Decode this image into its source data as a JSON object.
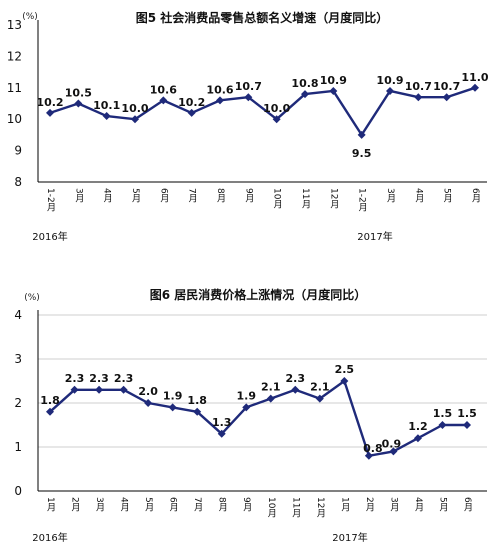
{
  "chart_data": [
    {
      "type": "line",
      "title": "图5 社会消费品零售总额名义增速（月度同比）",
      "unit": "(%)",
      "ylim": [
        8,
        13
      ],
      "yticks": [
        8,
        9,
        10,
        11,
        12,
        13
      ],
      "grid": false,
      "categories": [
        "1-2月",
        "3月",
        "4月",
        "5月",
        "6月",
        "7月",
        "8月",
        "9月",
        "10月",
        "11月",
        "12月",
        "1-2月",
        "3月",
        "4月",
        "5月",
        "6月"
      ],
      "year_labels": [
        {
          "text": "2016年",
          "index": 0
        },
        {
          "text": "2017年",
          "index": 11
        }
      ],
      "series": [
        {
          "values": [
            10.2,
            10.5,
            10.1,
            10.0,
            10.6,
            10.2,
            10.6,
            10.7,
            10.0,
            10.8,
            10.9,
            9.5,
            10.9,
            10.7,
            10.7,
            11.0
          ],
          "labels": [
            "10.2",
            "10.5",
            "10.1",
            "10.0",
            "10.6",
            "10.2",
            "10.6",
            "10.7",
            "10.0",
            "10.8",
            "10.9",
            "9.5",
            "10.9",
            "10.7",
            "10.7",
            "11.0"
          ]
        }
      ],
      "colors": {
        "series": "#1f2a7a"
      }
    },
    {
      "type": "line",
      "title": "图6 居民消费价格上涨情况（月度同比）",
      "unit": "(%)",
      "ylim": [
        0,
        4
      ],
      "yticks": [
        0,
        1,
        2,
        3,
        4
      ],
      "grid": true,
      "categories": [
        "1月",
        "2月",
        "3月",
        "4月",
        "5月",
        "6月",
        "7月",
        "8月",
        "9月",
        "10月",
        "11月",
        "12月",
        "1月",
        "2月",
        "3月",
        "4月",
        "5月",
        "6月"
      ],
      "year_labels": [
        {
          "text": "2016年",
          "index": 0
        },
        {
          "text": "2017年",
          "index": 12
        }
      ],
      "series": [
        {
          "values": [
            1.8,
            2.3,
            2.3,
            2.3,
            2.0,
            1.9,
            1.8,
            1.3,
            1.9,
            2.1,
            2.3,
            2.1,
            2.5,
            0.8,
            0.9,
            1.2,
            1.5,
            1.5
          ],
          "labels": [
            "1.8",
            "2.3",
            "2.3",
            "2.3",
            "2.0",
            "1.9",
            "1.8",
            "1.3",
            "1.9",
            "2.1",
            "2.3",
            "2.1",
            "2.5",
            "0.8",
            "0.9",
            "1.2",
            "1.5",
            "1.5"
          ]
        }
      ],
      "colors": {
        "series": "#1f2a7a"
      }
    }
  ]
}
